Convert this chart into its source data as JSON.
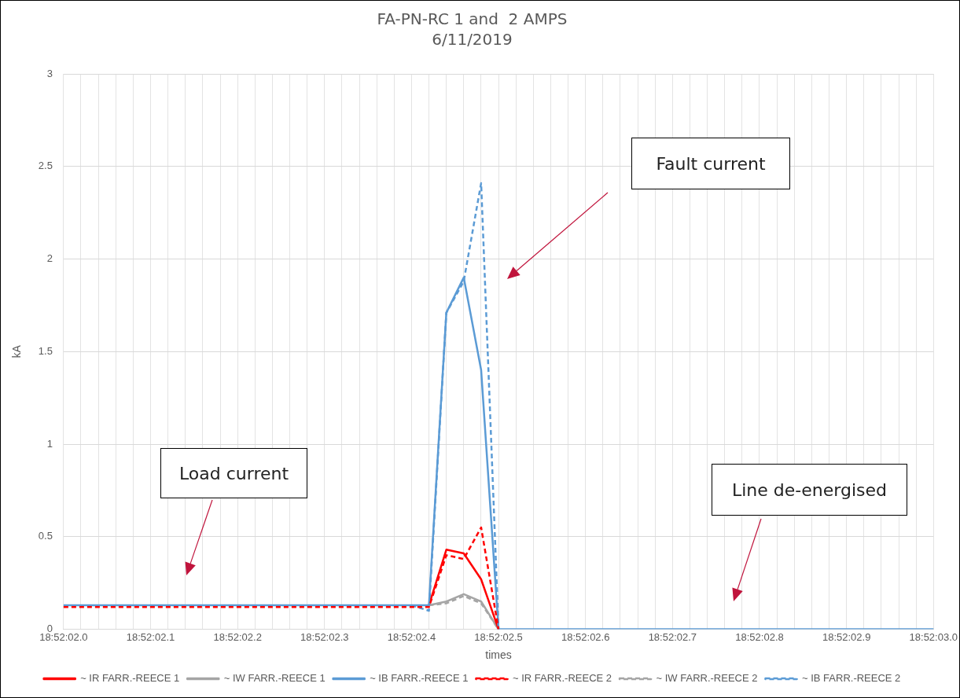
{
  "chart_data": {
    "type": "line",
    "title": "FA-PN-RC 1 and  2 AMPS",
    "subtitle": "6/11/2019",
    "xlabel": "times",
    "ylabel": "kA",
    "categories": [
      "18:52:02.0",
      null,
      null,
      null,
      null,
      "18:52:02.1",
      null,
      null,
      null,
      null,
      "18:52:02.2",
      null,
      null,
      null,
      null,
      "18:52:02.3",
      null,
      null,
      null,
      null,
      "18:52:02.4",
      null,
      null,
      null,
      null,
      "18:52:02.5",
      null,
      null,
      null,
      null,
      "18:52:02.6",
      null,
      null,
      null,
      null,
      "18:52:02.7",
      null,
      null,
      null,
      null,
      "18:52:02.8",
      null,
      null,
      null,
      null,
      "18:52:02.9",
      null,
      null,
      null,
      null,
      "18:52:03.0"
    ],
    "series": [
      {
        "name": "~ IR FARR.-REECE 1",
        "color": "#ff0000",
        "line_style": "solid",
        "values": [
          null,
          null,
          null,
          null,
          null,
          null,
          null,
          null,
          null,
          null,
          null,
          null,
          null,
          null,
          null,
          null,
          null,
          null,
          null,
          null,
          null,
          0.13,
          0.43,
          0.41,
          0.27,
          0,
          null,
          null,
          null,
          null,
          null,
          null,
          null,
          null,
          null,
          null,
          null,
          null,
          null,
          null,
          null,
          null,
          null,
          null,
          null,
          null,
          null,
          null,
          null,
          null,
          null
        ]
      },
      {
        "name": "~ IW FARR.-REECE 1",
        "color": "#a5a5a5",
        "line_style": "solid",
        "values": [
          null,
          null,
          null,
          null,
          null,
          null,
          null,
          null,
          null,
          null,
          null,
          null,
          null,
          null,
          null,
          null,
          null,
          null,
          null,
          null,
          null,
          0.13,
          0.15,
          0.19,
          0.15,
          0,
          null,
          null,
          null,
          null,
          null,
          null,
          null,
          null,
          null,
          null,
          null,
          null,
          null,
          null,
          null,
          null,
          null,
          null,
          null,
          null,
          null,
          null,
          null,
          null,
          null
        ]
      },
      {
        "name": "~ IB FARR.-REECE 1",
        "color": "#5b9bd5",
        "line_style": "solid",
        "values": [
          0.13,
          0.13,
          0.13,
          0.13,
          0.13,
          0.13,
          0.13,
          0.13,
          0.13,
          0.13,
          0.13,
          0.13,
          0.13,
          0.13,
          0.13,
          0.13,
          0.13,
          0.13,
          0.13,
          0.13,
          0.13,
          0.13,
          1.71,
          1.9,
          1.4,
          0,
          0,
          0,
          0,
          0,
          0,
          0,
          0,
          0,
          0,
          0,
          0,
          0,
          0,
          0,
          0,
          0,
          0,
          0,
          0,
          0,
          0,
          0,
          0,
          0,
          0
        ]
      },
      {
        "name": "~ IR FARR.-REECE 2",
        "color": "#ff0000",
        "line_style": "dashed",
        "values": [
          0.12,
          0.12,
          0.12,
          0.12,
          0.12,
          0.12,
          0.12,
          0.12,
          0.12,
          0.12,
          0.12,
          0.12,
          0.12,
          0.12,
          0.12,
          0.12,
          0.12,
          0.12,
          0.12,
          0.12,
          0.12,
          0.12,
          0.4,
          0.38,
          0.55,
          0,
          null,
          null,
          null,
          null,
          null,
          null,
          null,
          null,
          null,
          null,
          null,
          null,
          null,
          null,
          null,
          null,
          null,
          null,
          null,
          null,
          null,
          null,
          null,
          null,
          null
        ]
      },
      {
        "name": "~ IW FARR.-REECE 2",
        "color": "#a5a5a5",
        "line_style": "dashed",
        "values": [
          null,
          null,
          null,
          null,
          null,
          null,
          null,
          null,
          null,
          null,
          null,
          null,
          null,
          null,
          null,
          null,
          null,
          null,
          null,
          null,
          null,
          0.13,
          0.14,
          0.18,
          0.14,
          0,
          null,
          null,
          null,
          null,
          null,
          null,
          null,
          null,
          null,
          null,
          null,
          null,
          null,
          null,
          null,
          null,
          null,
          null,
          null,
          null,
          null,
          null,
          null,
          null,
          null
        ]
      },
      {
        "name": "~ IB FARR.-REECE 2",
        "color": "#5b9bd5",
        "line_style": "dashed",
        "values": [
          null,
          null,
          null,
          null,
          null,
          null,
          null,
          null,
          null,
          null,
          null,
          null,
          null,
          null,
          null,
          null,
          null,
          null,
          null,
          null,
          0.13,
          0.1,
          1.71,
          1.88,
          2.41,
          0,
          null,
          null,
          null,
          null,
          null,
          null,
          null,
          null,
          null,
          null,
          null,
          null,
          null,
          null,
          null,
          null,
          null,
          null,
          null,
          null,
          null,
          null,
          null,
          null,
          null
        ]
      }
    ],
    "ylim": [
      0,
      3
    ],
    "yticks": [
      0,
      0.5,
      1,
      1.5,
      2,
      2.5,
      3
    ],
    "grid": true,
    "legend": "bottom",
    "marker": "none",
    "annotations": [
      "Load current",
      "Fault current",
      "Line de-energised"
    ]
  }
}
